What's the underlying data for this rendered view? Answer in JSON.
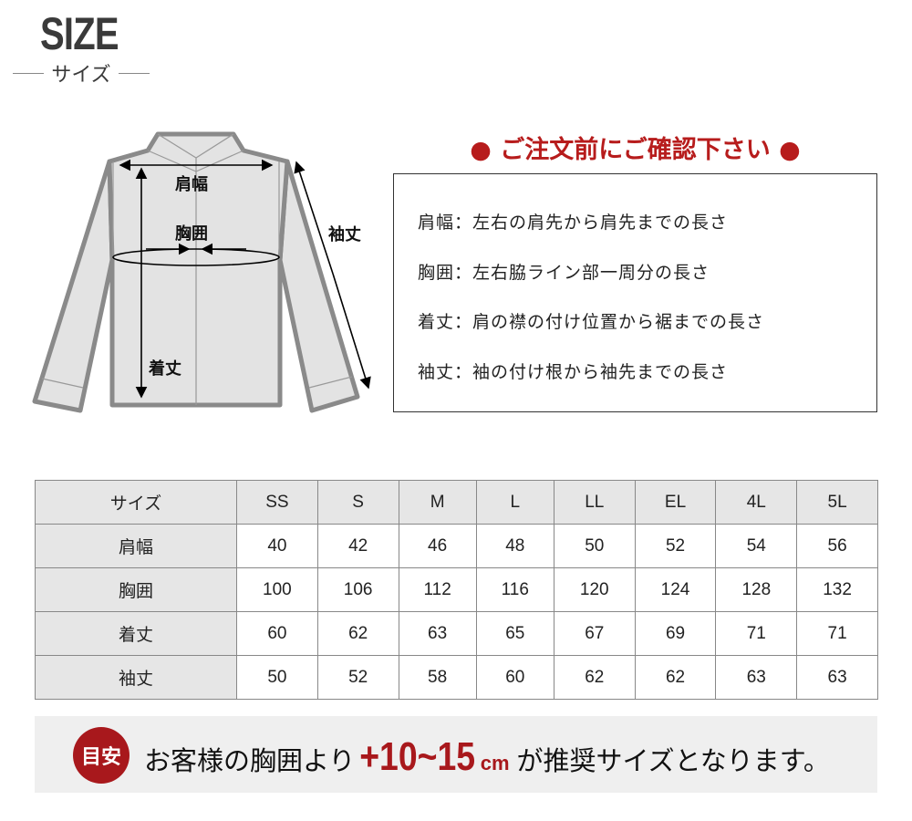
{
  "header": {
    "title": "SIZE",
    "subtitle": "サイズ"
  },
  "diagram": {
    "shoulder": "肩幅",
    "chest": "胸囲",
    "length": "着丈",
    "sleeve": "袖丈"
  },
  "notice": {
    "heading": "● ご注文前にご確認下さい ●",
    "rows": [
      "肩幅：左右の肩先から肩先までの長さ",
      "胸囲：左右脇ライン部一周分の長さ",
      "着丈：肩の襟の付け位置から裾までの長さ",
      "袖丈：袖の付け根から袖先までの長さ"
    ]
  },
  "table": {
    "header": [
      "サイズ",
      "SS",
      "S",
      "M",
      "L",
      "LL",
      "EL",
      "4L",
      "5L"
    ],
    "rows": [
      [
        "肩幅",
        "40",
        "42",
        "46",
        "48",
        "50",
        "52",
        "54",
        "56"
      ],
      [
        "胸囲",
        "100",
        "106",
        "112",
        "116",
        "120",
        "124",
        "128",
        "132"
      ],
      [
        "着丈",
        "60",
        "62",
        "63",
        "65",
        "67",
        "69",
        "71",
        "71"
      ],
      [
        "袖丈",
        "50",
        "52",
        "58",
        "60",
        "62",
        "62",
        "63",
        "63"
      ]
    ]
  },
  "banner": {
    "badge": "目安",
    "text_before": "お客様の胸囲より",
    "highlight": "+10~15",
    "unit": "cm",
    "text_after": "が推奨サイズとなります。"
  },
  "colors": {
    "accent": "#a8181c",
    "shirt_outline": "#8a8a8a",
    "shirt_fill": "#e3e3e3"
  }
}
